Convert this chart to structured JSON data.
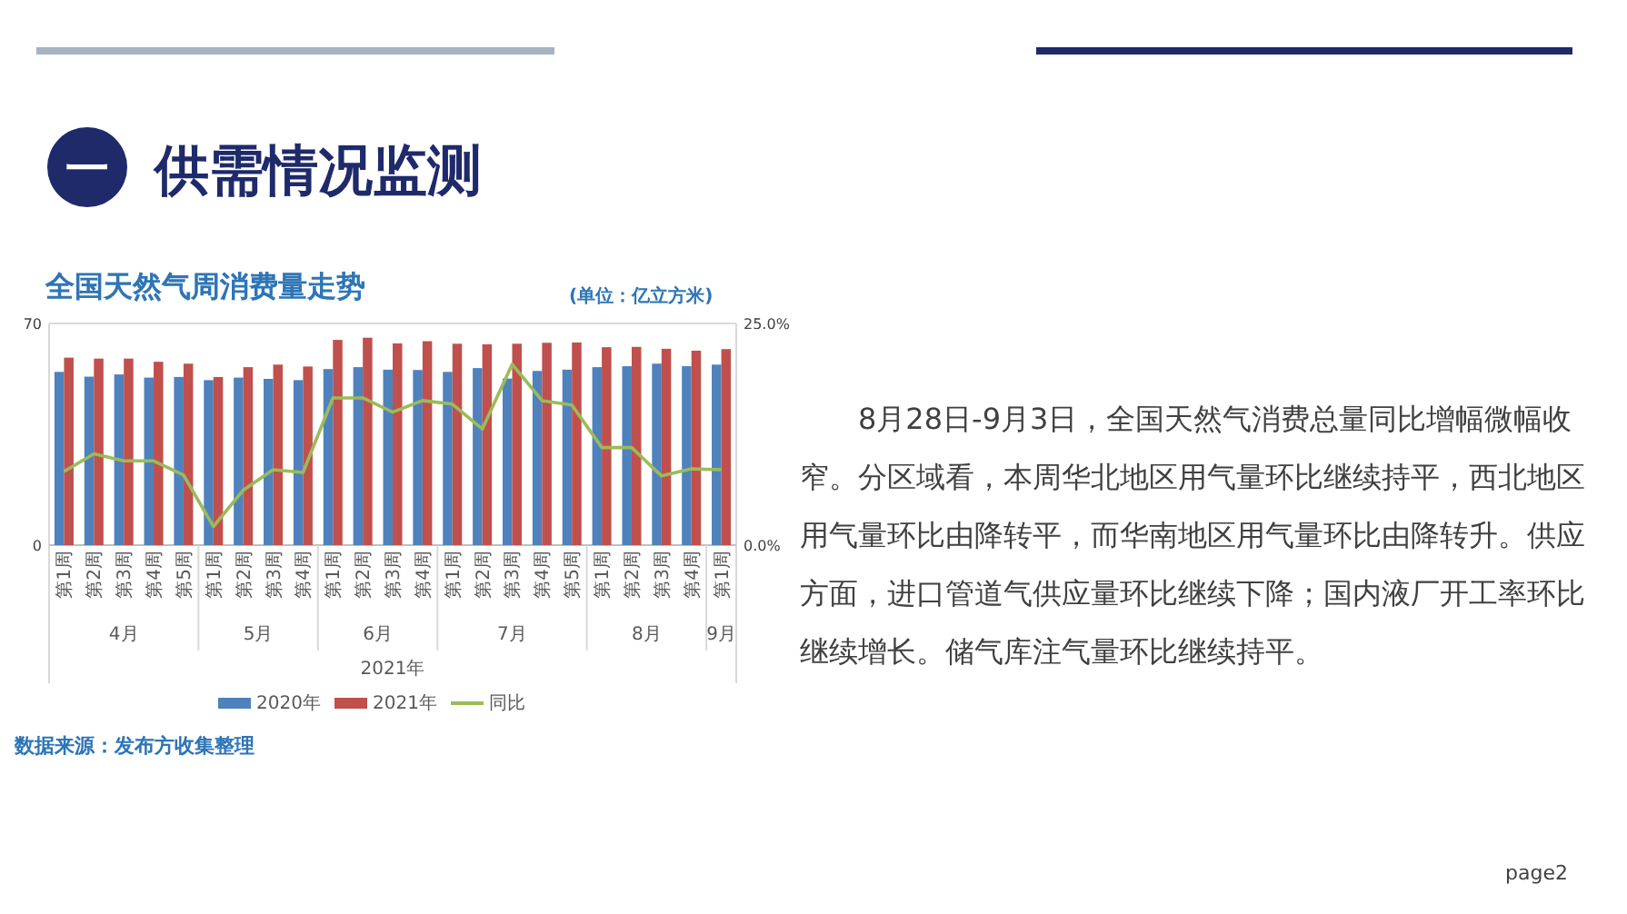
{
  "chart_data": {
    "type": "bar",
    "title": "全国天然气周消费量走势",
    "categories": [
      "第1周",
      "第2周",
      "第3周",
      "第4周",
      "第5周",
      "第1周",
      "第2周",
      "第3周",
      "第4周",
      "第1周",
      "第2周",
      "第3周",
      "第4周",
      "第1周",
      "第2周",
      "第3周",
      "第4周",
      "第5周",
      "第1周",
      "第2周",
      "第3周",
      "第4周",
      "第1周"
    ],
    "series": [
      {
        "name": "2020年",
        "color": "#4f81bd",
        "values": [
          54.7,
          53.2,
          53.9,
          52.9,
          53.1,
          52.1,
          52.9,
          52.5,
          52.1,
          55.6,
          56.2,
          55.4,
          55.3,
          54.7,
          55.9,
          52.6,
          55.0,
          55.4,
          56.2,
          56.5,
          57.3,
          56.5,
          57.0
        ]
      },
      {
        "name": "2021年",
        "color": "#c0504d",
        "values": [
          59.2,
          58.9,
          58.9,
          57.9,
          57.3,
          53.1,
          56.2,
          57.0,
          56.4,
          64.8,
          65.5,
          63.7,
          64.4,
          63.6,
          63.4,
          63.6,
          63.9,
          64.0,
          62.5,
          62.6,
          62.0,
          61.4,
          61.9
        ]
      },
      {
        "name": "同比",
        "type": "line",
        "axis": "y2",
        "color": "#9bbb59",
        "values": [
          8.3,
          10.3,
          9.5,
          9.5,
          7.9,
          2.1,
          6.2,
          8.5,
          8.2,
          16.6,
          16.6,
          15.0,
          16.3,
          15.9,
          13.1,
          20.4,
          16.3,
          15.8,
          11.0,
          11.0,
          7.8,
          8.6,
          8.5
        ]
      }
    ],
    "ylim": [
      0,
      70
    ],
    "yticks": [
      0,
      70
    ],
    "y2lim": [
      0,
      25
    ],
    "y2ticks": [
      {
        "value": 0,
        "label": "0.0%"
      },
      {
        "value": 25,
        "label": "25.0%"
      }
    ],
    "legend": "bottom",
    "annotations": [
      "4月",
      "5月",
      "6月",
      "7月",
      "8月",
      "9月",
      "2021年",
      "(单位：亿立方米)",
      "数据来源：发布方收集整理",
      "一",
      "供需情况监测",
      "8月28日-9月3日，全国天然气消费总量同比增幅微幅收窄。分区域看，本周华北地区用气量环比继续持平，西北地区用气量环比由降转平，而华南地区用气量环比由降转升。供应方面，进口管道气供应量环比继续下降；国内液厂开工率环比继续增长。储气库注气量环比继续持平。",
      "page2"
    ]
  }
}
